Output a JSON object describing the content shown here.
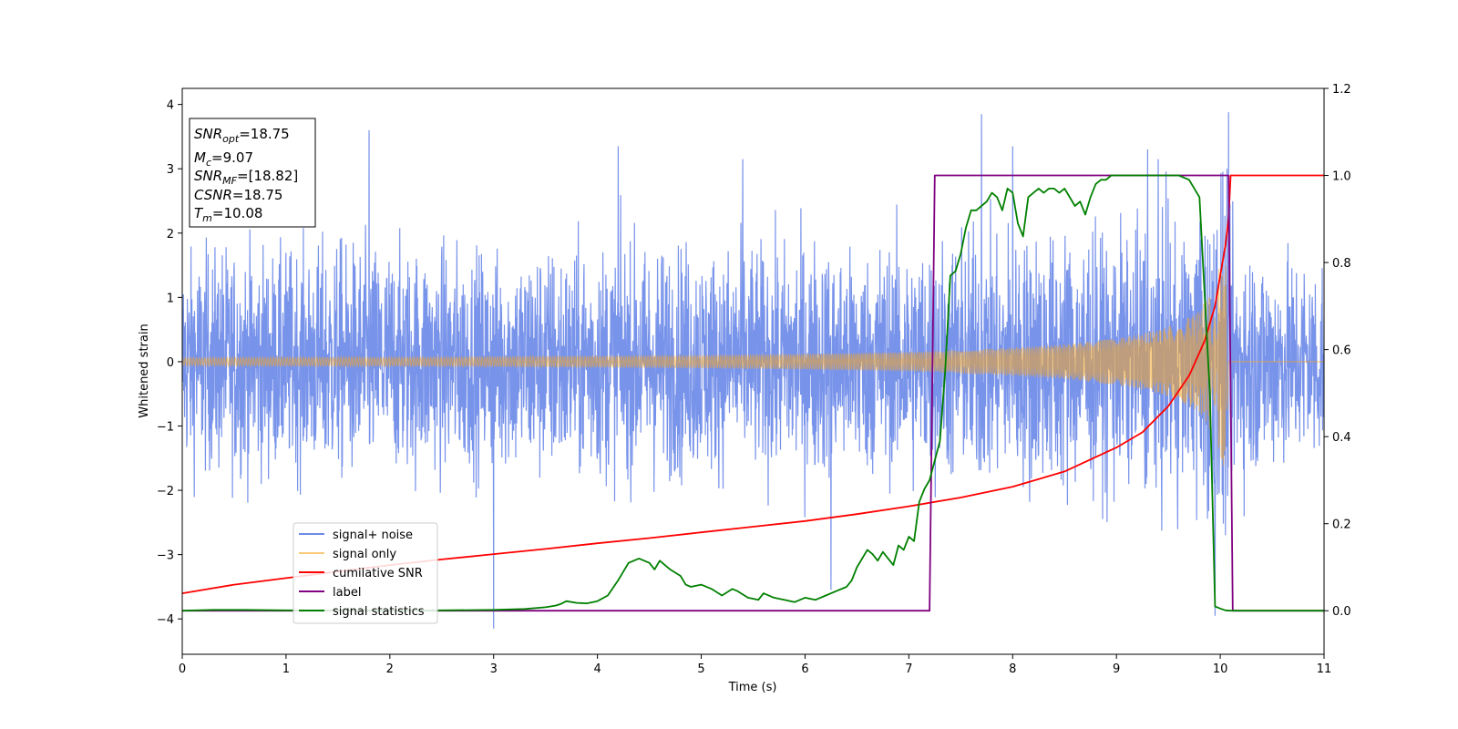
{
  "chart_data": {
    "type": "line",
    "xlabel": "Time (s)",
    "ylabel": "Whitened strain",
    "xlim": [
      0,
      11
    ],
    "ylim": [
      -4.55,
      4.25
    ],
    "y2lim": [
      -0.1,
      1.2
    ],
    "xticks": [
      "0",
      "1",
      "2",
      "3",
      "4",
      "5",
      "6",
      "7",
      "8",
      "9",
      "10",
      "11"
    ],
    "yticks": [
      "4",
      "3",
      "2",
      "1",
      "0",
      "−1",
      "−2",
      "−3",
      "−4"
    ],
    "y2ticks": [
      "1.2",
      "1.0",
      "0.8",
      "0.6",
      "0.4",
      "0.2",
      "0.0"
    ],
    "grid": false,
    "legend_position": "lower-left",
    "annotation": {
      "snr_opt": {
        "sym": "SNR",
        "sub": "opt",
        "value": "=18.75"
      },
      "mc": {
        "sym": "M",
        "sub": "c",
        "value": "=9.07"
      },
      "snr_mf": {
        "sym": "SNR",
        "sub": "MF",
        "value": "=[18.82]"
      },
      "csnr": {
        "sym": "CSNR",
        "sub": "",
        "value": "=18.75"
      },
      "tm": {
        "sym": "T",
        "sub": "m",
        "value": "=10.08"
      }
    },
    "series": [
      {
        "name": "signal+ noise",
        "color": "#6d8ae8",
        "axis": "left",
        "x": [
          0,
          0.5,
          1,
          1.5,
          2,
          2.5,
          3,
          3.5,
          4,
          4.5,
          5,
          5.5,
          6,
          6.5,
          7,
          7.5,
          8,
          8.5,
          9,
          9.5,
          10,
          10.5,
          11
        ],
        "noise_envelope": [
          2.2,
          2.3,
          2.2,
          2.4,
          2.3,
          2.3,
          2.2,
          2.4,
          2.3,
          2.4,
          2.3,
          2.3,
          2.4,
          2.3,
          2.4,
          2.5,
          2.6,
          2.6,
          2.5,
          2.6,
          2.7,
          2.2,
          2.1
        ],
        "peaks": [
          {
            "x": 1.8,
            "y": 3.6
          },
          {
            "x": 4.2,
            "y": 3.35
          },
          {
            "x": 5.4,
            "y": 3.15
          },
          {
            "x": 7.7,
            "y": 3.85
          },
          {
            "x": 8.0,
            "y": 3.35
          },
          {
            "x": 9.3,
            "y": 3.3
          },
          {
            "x": 10.08,
            "y": 3.88
          },
          {
            "x": 3.0,
            "y": -4.15
          },
          {
            "x": 9.95,
            "y": -3.95
          },
          {
            "x": 6.25,
            "y": -3.55
          }
        ]
      },
      {
        "name": "signal only",
        "color": "#f5a623",
        "axis": "left",
        "x": [
          0,
          1,
          2,
          3,
          4,
          5,
          6,
          7,
          7.5,
          8,
          8.5,
          9,
          9.3,
          9.6,
          9.8,
          9.9,
          10.0,
          10.05,
          10.08,
          11
        ],
        "amplitude": [
          0.06,
          0.07,
          0.07,
          0.08,
          0.09,
          0.1,
          0.12,
          0.15,
          0.18,
          0.22,
          0.27,
          0.36,
          0.45,
          0.6,
          0.8,
          1.05,
          1.5,
          1.8,
          0,
          0
        ]
      },
      {
        "name": "cumilative SNR",
        "color": "#ff0000",
        "axis": "right",
        "x": [
          0,
          0.5,
          1,
          1.5,
          2,
          2.5,
          3,
          3.5,
          4,
          4.5,
          5,
          5.5,
          6,
          6.5,
          7,
          7.5,
          8,
          8.5,
          9,
          9.25,
          9.5,
          9.7,
          9.85,
          9.95,
          10.0,
          10.05,
          10.08,
          10.1,
          11
        ],
        "values": [
          0.04,
          0.06,
          0.075,
          0.09,
          0.105,
          0.118,
          0.13,
          0.142,
          0.155,
          0.167,
          0.18,
          0.193,
          0.206,
          0.222,
          0.24,
          0.26,
          0.285,
          0.32,
          0.375,
          0.41,
          0.47,
          0.54,
          0.62,
          0.7,
          0.77,
          0.84,
          0.9,
          1.0,
          1.0
        ]
      },
      {
        "name": "label",
        "color": "#800080",
        "axis": "right",
        "x": [
          0,
          7.2,
          7.25,
          10.08,
          10.12,
          11
        ],
        "values": [
          0,
          0,
          1,
          1,
          0,
          0
        ]
      },
      {
        "name": "signal statistics",
        "color": "#008000",
        "axis": "right",
        "x": [
          0,
          0.3,
          0.6,
          1,
          1.5,
          2,
          2.5,
          3,
          3.3,
          3.5,
          3.6,
          3.65,
          3.7,
          3.8,
          3.9,
          4.0,
          4.1,
          4.2,
          4.25,
          4.3,
          4.4,
          4.5,
          4.55,
          4.6,
          4.7,
          4.8,
          4.85,
          4.9,
          5.0,
          5.1,
          5.2,
          5.3,
          5.35,
          5.45,
          5.55,
          5.6,
          5.7,
          5.8,
          5.9,
          6.0,
          6.1,
          6.2,
          6.3,
          6.4,
          6.45,
          6.5,
          6.6,
          6.65,
          6.7,
          6.75,
          6.8,
          6.85,
          6.9,
          6.95,
          7.0,
          7.05,
          7.1,
          7.15,
          7.2,
          7.3,
          7.35,
          7.4,
          7.45,
          7.5,
          7.55,
          7.6,
          7.65,
          7.7,
          7.75,
          7.8,
          7.85,
          7.9,
          7.95,
          8.0,
          8.05,
          8.1,
          8.15,
          8.2,
          8.25,
          8.3,
          8.35,
          8.4,
          8.45,
          8.5,
          8.55,
          8.6,
          8.65,
          8.7,
          8.75,
          8.8,
          8.85,
          8.9,
          8.95,
          9.0,
          9.1,
          9.2,
          9.3,
          9.4,
          9.5,
          9.6,
          9.7,
          9.8,
          9.9,
          9.95,
          10.0,
          10.05,
          10.1,
          10.15,
          10.2,
          11
        ],
        "values": [
          0.0,
          0.002,
          0.002,
          0.001,
          0.001,
          0.0,
          0.001,
          0.002,
          0.004,
          0.008,
          0.012,
          0.016,
          0.022,
          0.018,
          0.017,
          0.022,
          0.035,
          0.07,
          0.09,
          0.11,
          0.12,
          0.11,
          0.095,
          0.115,
          0.095,
          0.08,
          0.06,
          0.055,
          0.06,
          0.05,
          0.035,
          0.05,
          0.045,
          0.03,
          0.025,
          0.04,
          0.03,
          0.025,
          0.02,
          0.03,
          0.025,
          0.035,
          0.045,
          0.055,
          0.07,
          0.1,
          0.14,
          0.13,
          0.115,
          0.135,
          0.12,
          0.105,
          0.15,
          0.14,
          0.17,
          0.16,
          0.25,
          0.28,
          0.3,
          0.39,
          0.55,
          0.77,
          0.78,
          0.82,
          0.88,
          0.92,
          0.92,
          0.93,
          0.94,
          0.96,
          0.95,
          0.92,
          0.97,
          0.96,
          0.89,
          0.86,
          0.95,
          0.96,
          0.97,
          0.96,
          0.97,
          0.97,
          0.96,
          0.97,
          0.95,
          0.93,
          0.94,
          0.91,
          0.95,
          0.98,
          0.99,
          0.99,
          1.0,
          1.0,
          1.0,
          1.0,
          1.0,
          1.0,
          1.0,
          1.0,
          0.99,
          0.95,
          0.5,
          0.01,
          0.005,
          0.001,
          0.0,
          0.0,
          0.0,
          0.0
        ]
      }
    ]
  }
}
